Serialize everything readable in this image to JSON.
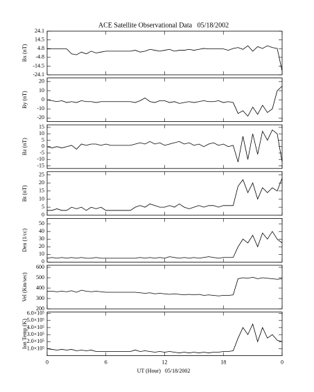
{
  "title": "ACE Satellite Observational Data   05/18/2002",
  "xlabel": "UT (Hour)   05/18/2002",
  "xlim": [
    0,
    24
  ],
  "xticks": [
    0,
    6,
    12,
    18,
    {
      "value": 24,
      "label": "0"
    }
  ],
  "x": [
    0,
    0.5,
    1,
    1.5,
    2,
    2.5,
    3,
    3.5,
    4,
    4.5,
    5,
    5.5,
    6,
    6.5,
    7,
    7.5,
    8,
    8.5,
    9,
    9.5,
    10,
    10.5,
    11,
    11.5,
    12,
    12.5,
    13,
    13.5,
    14,
    14.5,
    15,
    15.5,
    16,
    16.5,
    17,
    17.5,
    18,
    18.5,
    19,
    19.5,
    20,
    20.5,
    21,
    21.5,
    22,
    22.5,
    23,
    23.5,
    24
  ],
  "chart_data": [
    {
      "type": "line",
      "ylabel": "Bx (nT)",
      "color": "#000000",
      "ylim": [
        -24.1,
        24.1
      ],
      "yticks": [
        -24.1,
        -14.5,
        -4.8,
        4.8,
        14.5,
        24.1
      ],
      "values": [
        4.5,
        4.5,
        4.5,
        4.5,
        4.5,
        -1,
        -2,
        1,
        -1,
        2,
        0,
        1,
        2,
        2,
        2,
        2,
        2,
        2,
        3,
        1,
        2,
        4,
        3,
        2,
        3,
        4,
        2,
        3,
        3,
        4,
        3,
        4,
        5,
        4.5,
        4.5,
        4.5,
        4.5,
        3,
        5,
        6,
        4,
        8,
        2,
        7,
        5,
        8,
        6,
        5,
        -20
      ]
    },
    {
      "type": "line",
      "ylabel": "By (nT)",
      "color": "#000000",
      "ylim": [
        -24,
        24
      ],
      "yticks": [
        -20,
        -10,
        0,
        10,
        20
      ],
      "values": [
        0,
        -1,
        -2,
        -1,
        -3,
        -2,
        -3,
        -1,
        -2,
        -2,
        -3,
        -2,
        -2,
        -2,
        -2,
        -2,
        -2,
        -2,
        -3,
        -1,
        2,
        -2,
        -3,
        -1,
        -1,
        -3,
        -2,
        -4,
        -3,
        -2,
        -3,
        -2,
        -1,
        -2,
        -2,
        -1,
        -3,
        -2,
        -3,
        -15,
        -12,
        -18,
        -8,
        -16,
        -6,
        -14,
        -10,
        10,
        15
      ]
    },
    {
      "type": "line",
      "ylabel": "Bz (nT)",
      "color": "#000000",
      "ylim": [
        -17,
        17
      ],
      "yticks": [
        -15,
        -10,
        -5,
        0,
        5,
        10,
        15
      ],
      "values": [
        0,
        -1,
        0,
        -1,
        0,
        1,
        -2,
        2,
        1,
        2,
        2,
        1,
        2,
        1,
        1,
        1,
        1,
        1,
        2,
        3,
        2,
        4,
        2,
        3,
        1,
        2,
        3,
        4,
        2,
        3,
        1,
        2,
        0,
        2,
        3,
        1,
        2,
        0,
        1,
        -12,
        8,
        -10,
        10,
        -6,
        12,
        5,
        13,
        10,
        -12
      ]
    },
    {
      "type": "line",
      "ylabel": "Bt (nT)",
      "color": "#000000",
      "ylim": [
        0,
        27
      ],
      "yticks": [
        0,
        5,
        10,
        15,
        20,
        25
      ],
      "values": [
        3,
        3,
        4,
        3,
        3,
        5,
        4,
        5,
        3,
        5,
        4,
        5,
        3,
        3,
        3,
        3,
        3,
        3,
        5,
        6,
        5,
        7,
        6,
        5,
        5,
        6,
        5,
        7,
        5,
        4,
        5,
        6,
        5,
        6,
        6,
        5,
        6,
        6,
        6,
        18,
        22,
        14,
        20,
        10,
        17,
        14,
        17,
        15,
        23
      ]
    },
    {
      "type": "line",
      "ylabel": "Den (1/cc)",
      "color": "#000000",
      "ylim": [
        0,
        57
      ],
      "yticks": [
        0,
        10,
        20,
        30,
        40,
        50
      ],
      "values": [
        5,
        6,
        5,
        6,
        5,
        6,
        5,
        6,
        5,
        5,
        6,
        5,
        5,
        5,
        5,
        5,
        5,
        5,
        5,
        6,
        5,
        6,
        5,
        6,
        5,
        7,
        6,
        5,
        6,
        5,
        6,
        5,
        6,
        7,
        6,
        5,
        6,
        6,
        6,
        20,
        30,
        25,
        35,
        20,
        38,
        30,
        40,
        30,
        25
      ]
    },
    {
      "type": "line",
      "ylabel": "Vel (Km/sec)",
      "color": "#000000",
      "ylim": [
        200,
        620
      ],
      "yticks": [
        200,
        300,
        400,
        500,
        600
      ],
      "values": [
        370,
        370,
        365,
        370,
        365,
        375,
        360,
        380,
        370,
        365,
        370,
        365,
        360,
        360,
        360,
        360,
        360,
        360,
        360,
        355,
        350,
        355,
        345,
        350,
        345,
        340,
        345,
        340,
        335,
        340,
        335,
        340,
        330,
        335,
        330,
        325,
        330,
        330,
        335,
        490,
        500,
        495,
        505,
        490,
        500,
        495,
        490,
        485,
        490
      ]
    },
    {
      "type": "line",
      "ylabel": "Ion Temp (K)",
      "color": "#000000",
      "ylim": [
        0,
        620000
      ],
      "yticks": [
        {
          "value": 100000,
          "label": "1.0×10⁵"
        },
        {
          "value": 200000,
          "label": "2.0×10⁵"
        },
        {
          "value": 300000,
          "label": "3.0×10⁵"
        },
        {
          "value": 400000,
          "label": "4.0×10⁵"
        },
        {
          "value": 500000,
          "label": "5.0×10⁵"
        },
        {
          "value": 600000,
          "label": "6.0×10⁵"
        }
      ],
      "values": [
        100000,
        90000,
        80000,
        90000,
        80000,
        90000,
        70000,
        80000,
        70000,
        80000,
        60000,
        60000,
        60000,
        60000,
        60000,
        60000,
        60000,
        60000,
        80000,
        60000,
        70000,
        60000,
        50000,
        60000,
        50000,
        60000,
        50000,
        40000,
        50000,
        40000,
        50000,
        40000,
        50000,
        40000,
        50000,
        50000,
        60000,
        60000,
        70000,
        250000,
        400000,
        300000,
        450000,
        200000,
        400000,
        250000,
        300000,
        220000,
        200000
      ]
    }
  ]
}
